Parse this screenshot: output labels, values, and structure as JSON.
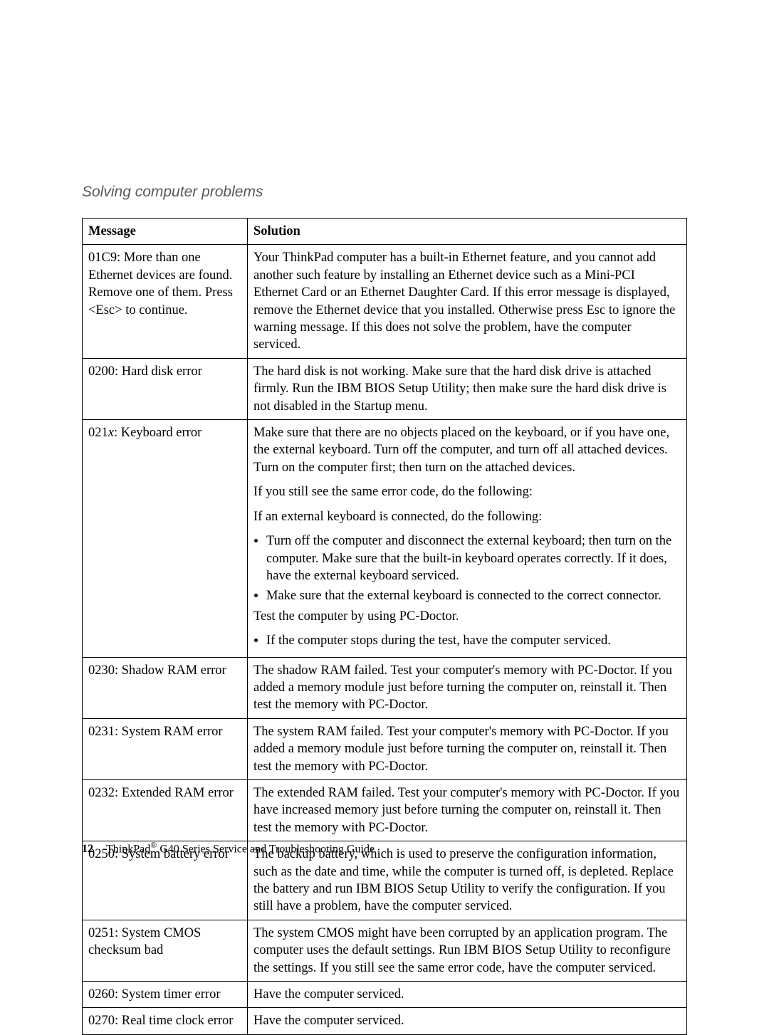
{
  "section_title": "Solving computer problems",
  "headers": {
    "message": "Message",
    "solution": "Solution"
  },
  "rows": [
    {
      "message_html": "01C9: More than one Ethernet devices are found. Remove one of them. Press &lt;Esc&gt; to continue.",
      "solution_html": "<p class=\"para\">Your ThinkPad computer has a built-in Ethernet feature, and you cannot add another such feature by installing an Ethernet device such as a Mini-PCI Ethernet Card or an Ethernet Daughter Card. If this error message is displayed, remove the Ethernet device that you installed. Otherwise press Esc to ignore the warning message. If this does not solve the problem, have the computer serviced.</p>"
    },
    {
      "message_html": "0200: Hard disk error",
      "solution_html": "<p class=\"para\">The hard disk is not working. Make sure that the hard disk drive is attached firmly. Run the IBM BIOS Setup Utility; then make sure the hard disk drive is not disabled in the Startup menu.</p>"
    },
    {
      "message_html": "021<span class=\"ital-x\">x</span>: Keyboard error",
      "solution_html": "<p class=\"para\">Make sure that there are no objects placed on the keyboard, or if you have one, the external keyboard. Turn off the computer, and turn off all attached devices. Turn on the computer first; then turn on the attached devices.</p><p class=\"para\">If you still see the same error code, do the following:</p><p class=\"para\">If an external keyboard is connected, do the following:</p><ul class=\"sol-list\"><li>Turn off the computer and disconnect the external keyboard; then turn on the computer. Make sure that the built-in keyboard operates correctly. If it does, have the external keyboard serviced.</li><li>Make sure that the external keyboard is connected to the correct connector.</li></ul><p class=\"para\">Test the computer by using PC-Doctor.</p><ul class=\"sol-list\"><li>If the computer stops during the test, have the computer serviced.</li></ul>"
    },
    {
      "message_html": "0230: Shadow RAM error",
      "solution_html": "<p class=\"para\">The shadow RAM failed. Test your computer's memory with PC-Doctor. If you added a memory module just before turning the computer on, reinstall it. Then test the memory with PC-Doctor.</p>"
    },
    {
      "message_html": "0231: System RAM error",
      "solution_html": "<p class=\"para\">The system RAM failed. Test your computer's memory with PC-Doctor. If you added a memory module just before turning the computer on, reinstall it. Then test the memory with PC-Doctor.</p>"
    },
    {
      "message_html": "0232: Extended RAM error",
      "solution_html": "<p class=\"para\">The extended RAM failed. Test your computer's memory with PC-Doctor. If you have increased memory just before turning the computer on, reinstall it. Then test the memory with PC-Doctor.</p>"
    },
    {
      "message_html": "0250: System battery error",
      "solution_html": "<p class=\"para\">The backup battery, which is used to preserve the configuration information, such as the date and time, while the computer is turned off, is depleted. Replace the battery and run IBM BIOS Setup Utility to verify the configuration. If you still have a problem, have the computer serviced.</p>"
    },
    {
      "message_html": "0251: System CMOS checksum bad",
      "solution_html": "<p class=\"para\">The system CMOS might have been corrupted by an application program. The computer uses the default settings. Run IBM BIOS Setup Utility to reconfigure the settings. If you still see the same error code, have the computer serviced.</p>"
    },
    {
      "message_html": "0260: System timer error",
      "solution_html": "<p class=\"para\">Have the computer serviced.</p>"
    },
    {
      "message_html": "0270: Real time clock error",
      "solution_html": "<p class=\"para\">Have the computer serviced.</p>"
    }
  ],
  "footer": {
    "page_number": "12",
    "product": "ThinkPad",
    "reg": "®",
    "suffix": " G40 Series Service and Troubleshooting Guide"
  }
}
